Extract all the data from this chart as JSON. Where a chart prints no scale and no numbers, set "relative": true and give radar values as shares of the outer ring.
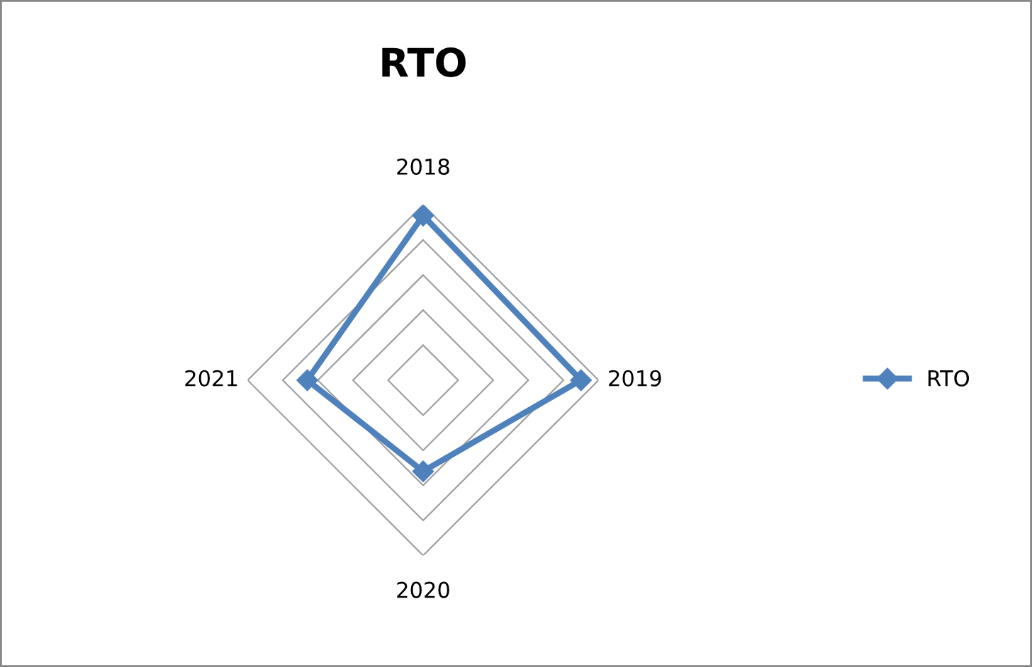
{
  "chart_data": {
    "type": "radar",
    "title": "RTO",
    "relative": true,
    "categories": [
      "2018",
      "2019",
      "2020",
      "2021"
    ],
    "series": [
      {
        "name": "RTO",
        "color": "#4f81bd",
        "values": [
          0.94,
          0.9,
          0.52,
          0.66
        ]
      }
    ],
    "grid": true,
    "legend": "right",
    "marker": "diamond",
    "line_style": "solid"
  }
}
